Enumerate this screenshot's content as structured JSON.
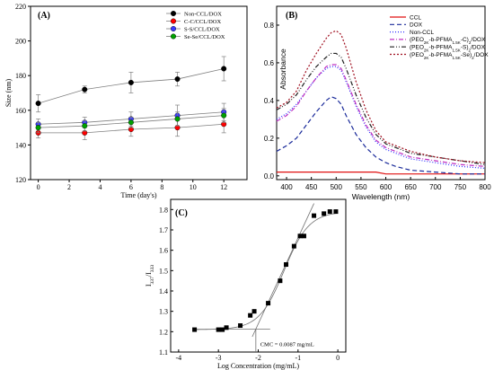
{
  "chart_data": [
    {
      "panel": "(A)",
      "type": "line",
      "xlabel": "Time (day's)",
      "ylabel": "Size (nm)",
      "xlim": [
        -0.5,
        13.5
      ],
      "ylim": [
        120,
        220
      ],
      "xticks": [
        0,
        2,
        4,
        6,
        8,
        10,
        12
      ],
      "yticks": [
        120,
        140,
        160,
        180,
        200,
        220
      ],
      "x": [
        0,
        3,
        6,
        9,
        12
      ],
      "legend_position": "top-right",
      "series": [
        {
          "name": "Non-CCL/DOX",
          "color": "#000000",
          "values": [
            164,
            172,
            176,
            178,
            184
          ],
          "errors": [
            5,
            2,
            6,
            4,
            7
          ]
        },
        {
          "name": "C-C/CCL/DOX",
          "color": "#ff0000",
          "values": [
            147,
            147,
            149,
            150,
            152
          ],
          "errors": [
            3,
            4,
            4,
            5,
            5
          ]
        },
        {
          "name": "S-S/CCL/DOX",
          "color": "#3b3bff",
          "values": [
            152,
            153,
            155,
            157,
            159
          ],
          "errors": [
            3,
            3,
            4,
            6,
            5
          ]
        },
        {
          "name": "Se-Se/CCL/DOX",
          "color": "#00a000",
          "values": [
            150,
            151,
            153,
            155,
            157
          ],
          "errors": [
            3,
            3,
            3,
            4,
            4
          ]
        }
      ]
    },
    {
      "panel": "(B)",
      "type": "line",
      "xlabel": "Wavelength (nm)",
      "ylabel": "Absorbance",
      "xlim": [
        380,
        800
      ],
      "ylim": [
        -0.02,
        0.9
      ],
      "xticks": [
        400,
        450,
        500,
        550,
        600,
        650,
        700,
        750,
        800
      ],
      "yticks": [
        0.0,
        0.2,
        0.4,
        0.6,
        0.8
      ],
      "x": [
        380,
        400,
        420,
        440,
        460,
        480,
        490,
        500,
        510,
        520,
        540,
        560,
        580,
        600,
        620,
        650,
        700,
        750,
        800
      ],
      "legend_position": "top-right",
      "series": [
        {
          "name": "CCL",
          "color": "#e01010",
          "style": "solid",
          "values": [
            0.02,
            0.02,
            0.02,
            0.02,
            0.02,
            0.02,
            0.02,
            0.02,
            0.02,
            0.02,
            0.02,
            0.02,
            0.02,
            0.01,
            0.01,
            0.01,
            0.01,
            0.01,
            0.01
          ]
        },
        {
          "name": "DOX",
          "color": "#1a2a9a",
          "style": "dashed",
          "values": [
            0.13,
            0.16,
            0.2,
            0.27,
            0.34,
            0.4,
            0.42,
            0.41,
            0.38,
            0.32,
            0.22,
            0.15,
            0.1,
            0.07,
            0.05,
            0.03,
            0.02,
            0.01,
            0.01
          ]
        },
        {
          "name": "Non-CCL",
          "color": "#3030ff",
          "style": "dotted",
          "values": [
            0.3,
            0.33,
            0.38,
            0.45,
            0.52,
            0.57,
            0.58,
            0.58,
            0.56,
            0.5,
            0.37,
            0.26,
            0.18,
            0.14,
            0.12,
            0.09,
            0.07,
            0.05,
            0.04
          ]
        },
        {
          "name": "(PEO_{2K}-b-PFMA_{1.5K}-C)_{2}/DOX",
          "color": "#c030c0",
          "style": "dash-dot",
          "values": [
            0.29,
            0.32,
            0.37,
            0.45,
            0.52,
            0.58,
            0.59,
            0.59,
            0.57,
            0.51,
            0.38,
            0.27,
            0.19,
            0.15,
            0.13,
            0.1,
            0.08,
            0.06,
            0.05
          ]
        },
        {
          "name": "(PEO_{2K}-b-PFMA_{1.5K}-S)_{2}/DOX",
          "color": "#202020",
          "style": "dash-dot-dot",
          "values": [
            0.35,
            0.38,
            0.43,
            0.51,
            0.58,
            0.63,
            0.65,
            0.65,
            0.63,
            0.57,
            0.43,
            0.31,
            0.22,
            0.17,
            0.15,
            0.12,
            0.1,
            0.08,
            0.06
          ]
        },
        {
          "name": "(PEO_{2K}-b-PFMA_{1.5K}-Se)_{2}/DOX",
          "color": "#a01020",
          "style": "short-dot",
          "values": [
            0.36,
            0.39,
            0.45,
            0.56,
            0.65,
            0.73,
            0.76,
            0.77,
            0.75,
            0.68,
            0.5,
            0.35,
            0.24,
            0.18,
            0.16,
            0.13,
            0.1,
            0.08,
            0.07
          ]
        }
      ]
    },
    {
      "panel": "(C)",
      "type": "scatter",
      "xlabel": "Log Concentration (mg/mL)",
      "ylabel": "I_{337}/I_{333}",
      "xlim": [
        -4.2,
        0.2
      ],
      "ylim": [
        1.1,
        1.85
      ],
      "xticks": [
        -4,
        -3,
        -2,
        -1,
        0
      ],
      "yticks": [
        1.1,
        1.2,
        1.3,
        1.4,
        1.5,
        1.6,
        1.7,
        1.8
      ],
      "x": [
        -3.6,
        -3.0,
        -2.9,
        -2.8,
        -2.45,
        -2.2,
        -2.1,
        -1.75,
        -1.45,
        -1.3,
        -1.1,
        -0.95,
        -0.85,
        -0.6,
        -0.35,
        -0.2,
        -0.05
      ],
      "y": [
        1.21,
        1.21,
        1.21,
        1.22,
        1.23,
        1.28,
        1.3,
        1.34,
        1.45,
        1.53,
        1.62,
        1.67,
        1.67,
        1.77,
        1.78,
        1.79,
        1.79
      ],
      "annotation": "CMC = 0.0087 mg/mL",
      "cmc_log": -2.06
    }
  ]
}
